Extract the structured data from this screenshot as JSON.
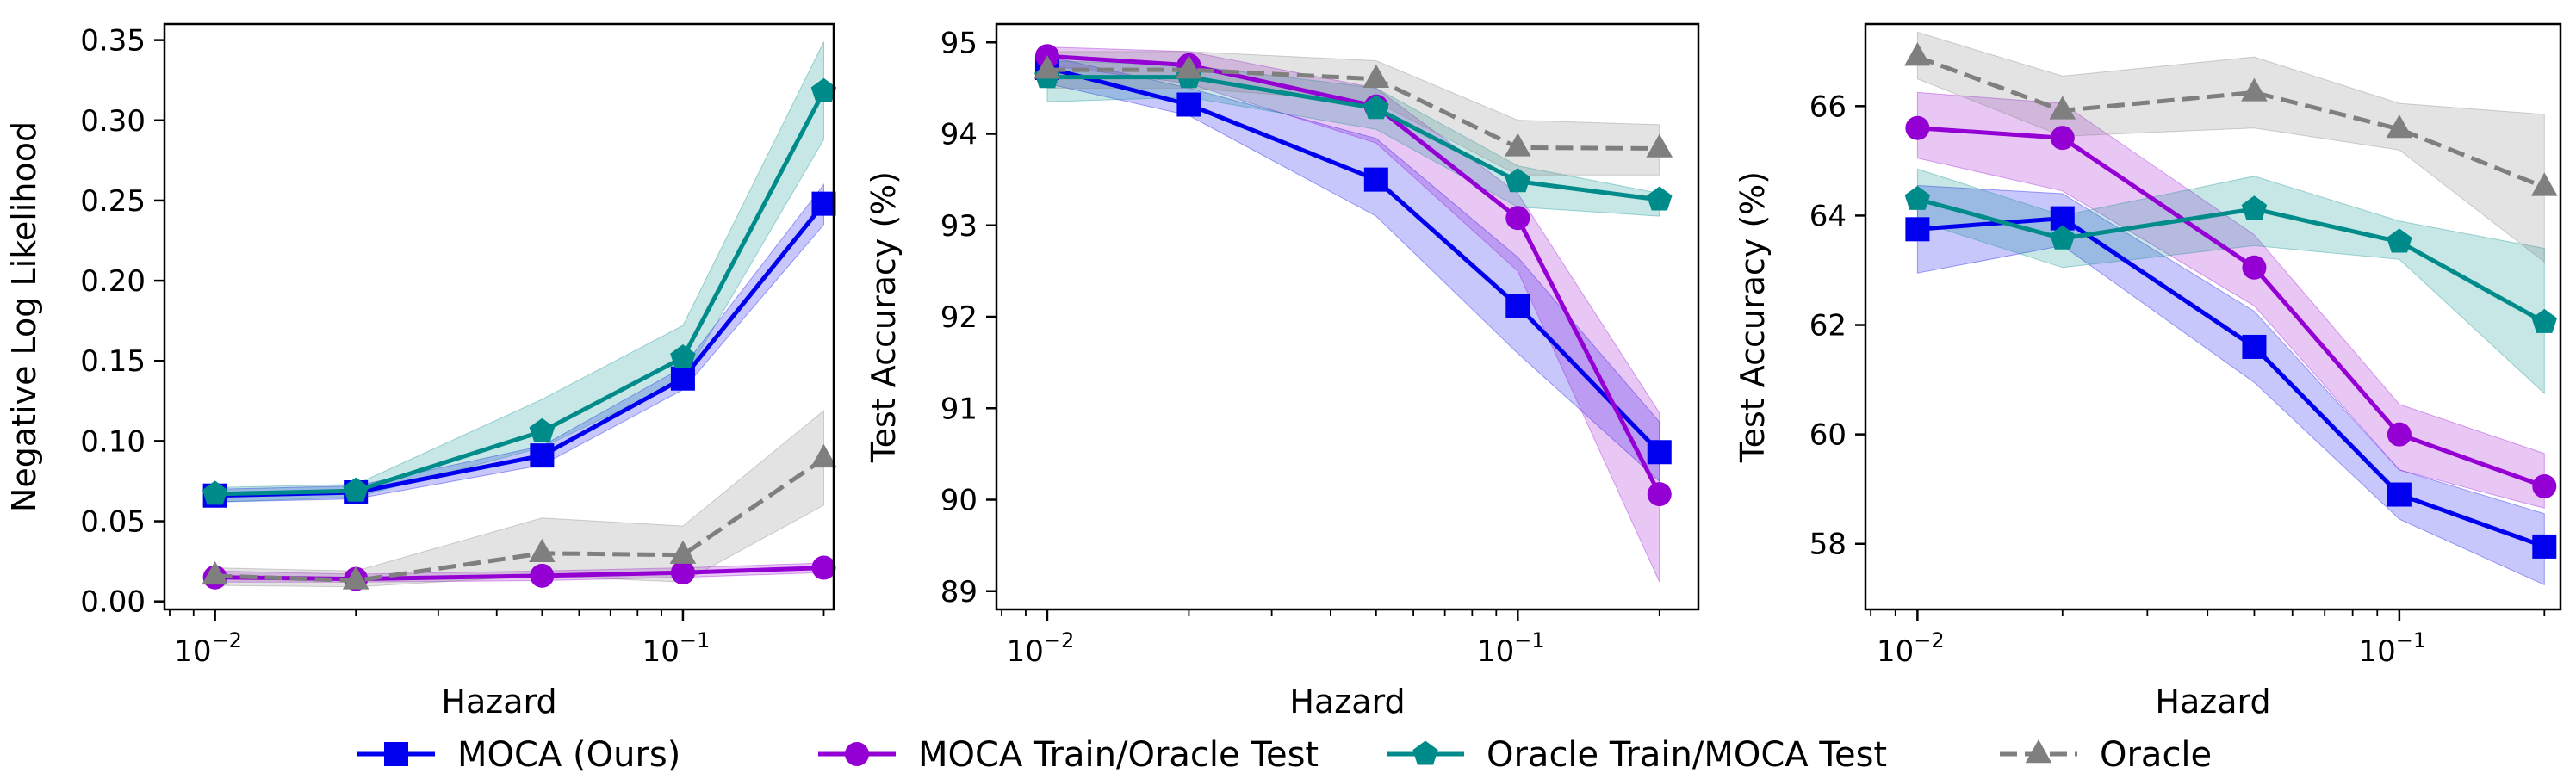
{
  "colors": {
    "moca": "#0000ee",
    "moca_train_oracle_test": "#9400d3",
    "oracle_train_moca_test": "#008b8b",
    "oracle": "#7f7f7f"
  },
  "legend": [
    {
      "key": "moca",
      "label": "MOCA (Ours)",
      "marker": "square",
      "dash": false
    },
    {
      "key": "moca_train_oracle_test",
      "label": "MOCA Train/Oracle Test",
      "marker": "circle",
      "dash": false
    },
    {
      "key": "oracle_train_moca_test",
      "label": "Oracle Train/MOCA Test",
      "marker": "pentagon",
      "dash": false
    },
    {
      "key": "oracle",
      "label": "Oracle",
      "marker": "triangle",
      "dash": true
    }
  ],
  "chart_data": [
    {
      "type": "line",
      "x": [
        0.01,
        0.02,
        0.05,
        0.1,
        0.2
      ],
      "xscale": "log",
      "xlim": [
        0.0078,
        0.21
      ],
      "xticks": [
        {
          "value": 0.01,
          "base": "10",
          "exp": "−2"
        },
        {
          "value": 0.1,
          "base": "10",
          "exp": "−1"
        }
      ],
      "xlabel": "Hazard",
      "ylabel": "Negative Log Likelihood",
      "ylim": [
        -0.005,
        0.36
      ],
      "yticks": [
        0.0,
        0.05,
        0.1,
        0.15,
        0.2,
        0.25,
        0.3,
        0.35
      ],
      "ytick_labels": [
        "0.00",
        "0.05",
        "0.10",
        "0.15",
        "0.20",
        "0.25",
        "0.30",
        "0.35"
      ],
      "series": [
        {
          "key": "moca",
          "values": [
            0.066,
            0.068,
            0.091,
            0.139,
            0.248
          ],
          "lower": [
            0.062,
            0.064,
            0.085,
            0.132,
            0.235
          ],
          "upper": [
            0.07,
            0.072,
            0.097,
            0.146,
            0.26
          ]
        },
        {
          "key": "moca_train_oracle_test",
          "values": [
            0.015,
            0.014,
            0.016,
            0.018,
            0.021
          ],
          "lower": [
            0.012,
            0.012,
            0.013,
            0.015,
            0.018
          ],
          "upper": [
            0.019,
            0.017,
            0.019,
            0.021,
            0.024
          ]
        },
        {
          "key": "oracle_train_moca_test",
          "values": [
            0.067,
            0.069,
            0.106,
            0.152,
            0.318
          ],
          "lower": [
            0.062,
            0.065,
            0.096,
            0.138,
            0.288
          ],
          "upper": [
            0.071,
            0.073,
            0.126,
            0.172,
            0.349
          ]
        },
        {
          "key": "oracle",
          "values": [
            0.016,
            0.013,
            0.03,
            0.029,
            0.089
          ],
          "lower": [
            0.01,
            0.009,
            0.016,
            0.012,
            0.06
          ],
          "upper": [
            0.021,
            0.019,
            0.052,
            0.047,
            0.119
          ]
        }
      ]
    },
    {
      "type": "line",
      "x": [
        0.01,
        0.02,
        0.05,
        0.1,
        0.2
      ],
      "xscale": "log",
      "xlim": [
        0.0078,
        0.242
      ],
      "xticks": [
        {
          "value": 0.01,
          "base": "10",
          "exp": "−2"
        },
        {
          "value": 0.1,
          "base": "10",
          "exp": "−1"
        }
      ],
      "xlabel": "Hazard",
      "ylabel": "Test Accuracy (%)",
      "ylim": [
        88.8,
        95.2
      ],
      "yticks": [
        89,
        90,
        91,
        92,
        93,
        94,
        95
      ],
      "ytick_labels": [
        "89",
        "90",
        "91",
        "92",
        "93",
        "94",
        "95"
      ],
      "series": [
        {
          "key": "moca",
          "values": [
            94.72,
            94.32,
            93.5,
            92.12,
            90.52
          ],
          "lower": [
            94.55,
            94.2,
            93.1,
            91.6,
            90.2
          ],
          "upper": [
            94.85,
            94.5,
            93.95,
            92.65,
            90.85
          ]
        },
        {
          "key": "moca_train_oracle_test",
          "values": [
            94.85,
            94.75,
            94.3,
            93.08,
            90.06
          ],
          "lower": [
            94.75,
            94.55,
            93.9,
            92.5,
            89.1
          ],
          "upper": [
            94.95,
            94.9,
            94.5,
            93.35,
            90.95
          ]
        },
        {
          "key": "oracle_train_moca_test",
          "values": [
            94.62,
            94.62,
            94.28,
            93.48,
            93.28
          ],
          "lower": [
            94.35,
            94.4,
            94.05,
            93.2,
            93.1
          ],
          "upper": [
            94.8,
            94.75,
            94.5,
            93.65,
            93.35
          ]
        },
        {
          "key": "oracle",
          "values": [
            94.7,
            94.7,
            94.6,
            93.85,
            93.84
          ],
          "lower": [
            94.5,
            94.5,
            94.35,
            93.55,
            93.55
          ],
          "upper": [
            94.9,
            94.9,
            94.8,
            94.15,
            94.1
          ]
        }
      ]
    },
    {
      "type": "line",
      "x": [
        0.01,
        0.02,
        0.05,
        0.1,
        0.2
      ],
      "xscale": "log",
      "xlim": [
        0.0078,
        0.216
      ],
      "xticks": [
        {
          "value": 0.01,
          "base": "10",
          "exp": "−2"
        },
        {
          "value": 0.1,
          "base": "10",
          "exp": "−1"
        }
      ],
      "xlabel": "Hazard",
      "ylabel": "Test Accuracy (%)",
      "ylim": [
        56.8,
        67.5
      ],
      "yticks": [
        58,
        60,
        62,
        64,
        66
      ],
      "ytick_labels": [
        "58",
        "60",
        "62",
        "64",
        "66"
      ],
      "series": [
        {
          "key": "moca",
          "values": [
            63.75,
            63.95,
            61.6,
            58.9,
            57.95
          ],
          "lower": [
            62.95,
            63.45,
            60.95,
            58.45,
            57.25
          ],
          "upper": [
            64.55,
            64.4,
            62.25,
            59.35,
            58.55
          ]
        },
        {
          "key": "moca_train_oracle_test",
          "values": [
            65.6,
            65.42,
            63.05,
            60.0,
            59.05
          ],
          "lower": [
            65.05,
            64.45,
            62.35,
            59.35,
            58.65
          ],
          "upper": [
            66.25,
            66.05,
            63.65,
            60.55,
            59.65
          ]
        },
        {
          "key": "oracle_train_moca_test",
          "values": [
            64.3,
            63.58,
            64.12,
            63.52,
            62.05
          ],
          "lower": [
            63.9,
            63.05,
            63.45,
            63.2,
            60.75
          ],
          "upper": [
            64.85,
            64.0,
            64.72,
            63.9,
            63.4
          ]
        },
        {
          "key": "oracle",
          "values": [
            66.9,
            65.92,
            66.25,
            65.58,
            64.52
          ],
          "lower": [
            66.5,
            65.45,
            65.6,
            65.2,
            63.15
          ],
          "upper": [
            67.35,
            66.55,
            66.9,
            66.05,
            65.85
          ]
        }
      ]
    }
  ]
}
